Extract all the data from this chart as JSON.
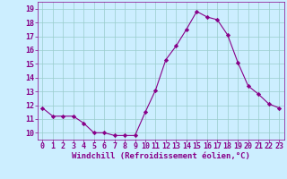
{
  "x": [
    0,
    1,
    2,
    3,
    4,
    5,
    6,
    7,
    8,
    9,
    10,
    11,
    12,
    13,
    14,
    15,
    16,
    17,
    18,
    19,
    20,
    21,
    22,
    23
  ],
  "y": [
    11.8,
    11.2,
    11.2,
    11.2,
    10.7,
    10.0,
    10.0,
    9.8,
    9.8,
    9.8,
    11.5,
    13.1,
    15.3,
    16.3,
    17.5,
    18.8,
    18.4,
    18.2,
    17.1,
    15.1,
    13.4,
    12.8,
    12.1,
    11.8
  ],
  "line_color": "#880088",
  "marker": "D",
  "marker_size": 2.2,
  "bg_color": "#cceeff",
  "grid_color": "#99cccc",
  "xlabel": "Windchill (Refroidissement éolien,°C)",
  "ylim": [
    9.5,
    19.5
  ],
  "xlim": [
    -0.5,
    23.5
  ],
  "yticks": [
    10,
    11,
    12,
    13,
    14,
    15,
    16,
    17,
    18,
    19
  ],
  "xticks": [
    0,
    1,
    2,
    3,
    4,
    5,
    6,
    7,
    8,
    9,
    10,
    11,
    12,
    13,
    14,
    15,
    16,
    17,
    18,
    19,
    20,
    21,
    22,
    23
  ],
  "tick_color": "#880088",
  "label_color": "#880088",
  "xlabel_fontsize": 6.5,
  "tick_fontsize": 6.0,
  "linewidth": 0.8
}
